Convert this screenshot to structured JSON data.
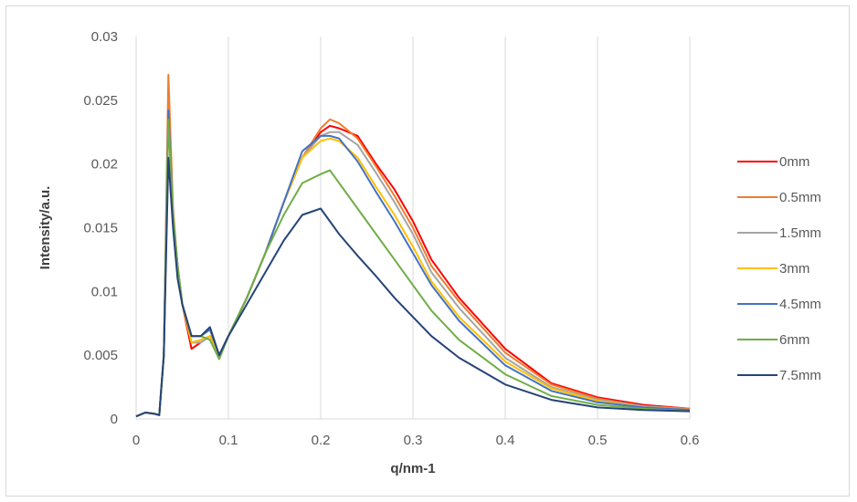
{
  "chart_data": {
    "type": "line",
    "xlabel": "q/nm-1",
    "ylabel": "Intensity/a.u.",
    "xlim": [
      0,
      0.6
    ],
    "ylim": [
      0,
      0.03
    ],
    "x_ticks": [
      "0",
      "0.1",
      "0.2",
      "0.3",
      "0.4",
      "0.5",
      "0.6"
    ],
    "y_ticks": [
      "0",
      "0.005",
      "0.01",
      "0.015",
      "0.02",
      "0.025",
      "0.03"
    ],
    "grid": "vertical",
    "legend_position": "right",
    "x": [
      0,
      0.01,
      0.02,
      0.025,
      0.03,
      0.035,
      0.04,
      0.045,
      0.05,
      0.06,
      0.07,
      0.08,
      0.09,
      0.1,
      0.12,
      0.14,
      0.16,
      0.18,
      0.2,
      0.21,
      0.22,
      0.24,
      0.26,
      0.28,
      0.3,
      0.32,
      0.35,
      0.4,
      0.45,
      0.5,
      0.55,
      0.6
    ],
    "series": [
      {
        "name": "0mm",
        "color": "#ff0000",
        "values": [
          0.0002,
          0.0005,
          0.0004,
          0.0003,
          0.005,
          0.0245,
          0.016,
          0.012,
          0.009,
          0.0055,
          0.006,
          0.0065,
          0.005,
          0.0065,
          0.0095,
          0.013,
          0.017,
          0.0205,
          0.0225,
          0.023,
          0.0228,
          0.0222,
          0.02,
          0.018,
          0.0155,
          0.0125,
          0.0095,
          0.0055,
          0.0028,
          0.0017,
          0.0011,
          0.0008
        ]
      },
      {
        "name": "0.5mm",
        "color": "#ed7d31",
        "values": [
          0.0002,
          0.0005,
          0.0004,
          0.0003,
          0.005,
          0.027,
          0.0165,
          0.012,
          0.009,
          0.006,
          0.006,
          0.0065,
          0.005,
          0.0065,
          0.0095,
          0.013,
          0.017,
          0.0205,
          0.0228,
          0.0235,
          0.0232,
          0.022,
          0.0198,
          0.0175,
          0.015,
          0.012,
          0.0092,
          0.0052,
          0.0027,
          0.0016,
          0.001,
          0.0008
        ]
      },
      {
        "name": "1.5mm",
        "color": "#a5a5a5",
        "values": [
          0.0002,
          0.0005,
          0.0004,
          0.0003,
          0.005,
          0.024,
          0.016,
          0.012,
          0.009,
          0.006,
          0.006,
          0.0065,
          0.005,
          0.0065,
          0.0095,
          0.013,
          0.017,
          0.0205,
          0.0222,
          0.0225,
          0.0225,
          0.0215,
          0.0193,
          0.017,
          0.0145,
          0.0115,
          0.0087,
          0.0048,
          0.0025,
          0.0015,
          0.001,
          0.0007
        ]
      },
      {
        "name": "3mm",
        "color": "#ffc000",
        "values": [
          0.0002,
          0.0005,
          0.0004,
          0.0003,
          0.005,
          0.0235,
          0.016,
          0.012,
          0.009,
          0.006,
          0.0062,
          0.0065,
          0.005,
          0.0065,
          0.0095,
          0.013,
          0.017,
          0.0205,
          0.0218,
          0.022,
          0.0218,
          0.0205,
          0.0182,
          0.016,
          0.0135,
          0.0108,
          0.008,
          0.0045,
          0.0024,
          0.0014,
          0.0009,
          0.0007
        ]
      },
      {
        "name": "4.5mm",
        "color": "#4472c4",
        "values": [
          0.0002,
          0.0005,
          0.0004,
          0.0003,
          0.005,
          0.0242,
          0.016,
          0.012,
          0.009,
          0.0065,
          0.0065,
          0.007,
          0.005,
          0.0065,
          0.0095,
          0.013,
          0.017,
          0.021,
          0.0222,
          0.0222,
          0.022,
          0.0202,
          0.0178,
          0.0155,
          0.013,
          0.0105,
          0.0077,
          0.0042,
          0.0022,
          0.0013,
          0.0009,
          0.0007
        ]
      },
      {
        "name": "6mm",
        "color": "#70ad47",
        "values": [
          0.0002,
          0.0005,
          0.0004,
          0.0003,
          0.005,
          0.0235,
          0.016,
          0.012,
          0.009,
          0.0065,
          0.0065,
          0.0062,
          0.0047,
          0.0065,
          0.0095,
          0.013,
          0.016,
          0.0185,
          0.0192,
          0.0195,
          0.0185,
          0.0165,
          0.0145,
          0.0125,
          0.0105,
          0.0085,
          0.0062,
          0.0035,
          0.0018,
          0.0011,
          0.0008,
          0.0006
        ]
      },
      {
        "name": "7.5mm",
        "color": "#264478",
        "values": [
          0.0002,
          0.0005,
          0.0004,
          0.0003,
          0.005,
          0.0205,
          0.015,
          0.011,
          0.009,
          0.0065,
          0.0065,
          0.0072,
          0.005,
          0.0065,
          0.009,
          0.0115,
          0.014,
          0.016,
          0.0165,
          0.0155,
          0.0145,
          0.0128,
          0.0112,
          0.0095,
          0.008,
          0.0065,
          0.0048,
          0.0027,
          0.0015,
          0.0009,
          0.0007,
          0.0006
        ]
      }
    ]
  }
}
